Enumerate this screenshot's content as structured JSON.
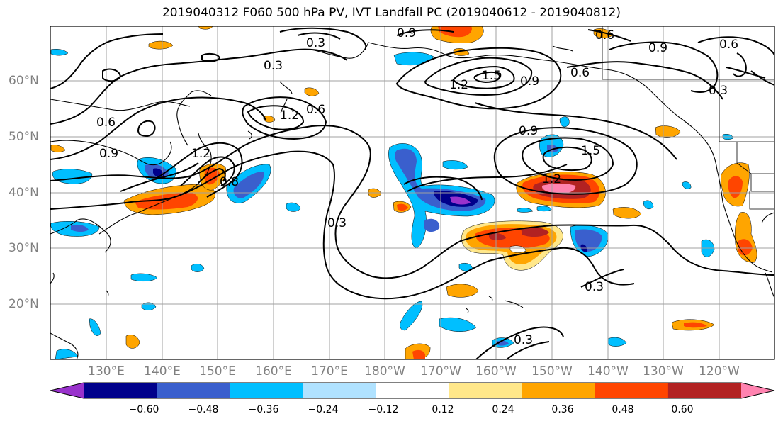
{
  "title": "2019040312 F060 500 hPa PV, IVT Landfall PC (2019040612 - 2019040812)",
  "lat_labels": [
    "60°N",
    "50°N",
    "40°N",
    "30°N",
    "20°N"
  ],
  "lon_labels": [
    "130°E",
    "140°E",
    "150°E",
    "160°E",
    "170°E",
    "180°W",
    "170°W",
    "160°W",
    "150°W",
    "140°W",
    "130°W",
    "120°W"
  ],
  "contour_labels": [
    "0.3",
    "0.9",
    "0.6",
    "0.9",
    "0.6",
    "0.3",
    "1.2",
    "0.6",
    "1.2",
    "1.5",
    "0.9",
    "0.6",
    "0.3",
    "0.6",
    "0.9",
    "1.2",
    "0.8",
    "0.9",
    "1.5",
    "1.2",
    "0.3",
    "0.3",
    "0.3"
  ],
  "colorbar": {
    "ticks": [
      "−0.60",
      "−0.48",
      "−0.36",
      "−0.24",
      "−0.12",
      "0.12",
      "0.24",
      "0.36",
      "0.48",
      "0.60"
    ],
    "colors": [
      "#9932cc",
      "#00008b",
      "#3a5fcd",
      "#00bfff",
      "#b0e2ff",
      "#ffffff",
      "#ffe78a",
      "#ffa500",
      "#ff4500",
      "#b22222",
      "#ff83b0"
    ]
  }
}
